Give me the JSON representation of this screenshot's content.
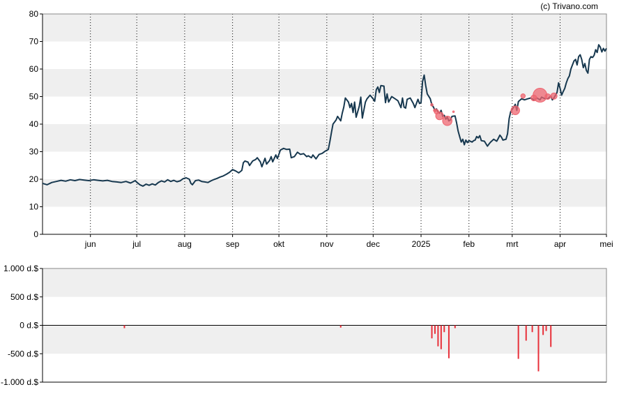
{
  "credit": "(c) Trivano.com",
  "colors": {
    "band": "#efefef",
    "price_line": "#17384f",
    "marker": "#ee6570",
    "bar": "#e8303a",
    "axis": "#000000"
  },
  "chart_data": [
    {
      "type": "line",
      "ylim": [
        0,
        80
      ],
      "yticks": [
        "0",
        "10",
        "20",
        "30",
        "40",
        "50",
        "60",
        "70",
        "80"
      ],
      "xlim": [
        0,
        365
      ],
      "xticks": [
        {
          "label": "jun",
          "x": 31
        },
        {
          "label": "jul",
          "x": 61
        },
        {
          "label": "aug",
          "x": 92
        },
        {
          "label": "sep",
          "x": 123
        },
        {
          "label": "okt",
          "x": 153
        },
        {
          "label": "nov",
          "x": 184
        },
        {
          "label": "dec",
          "x": 214
        },
        {
          "label": "2025",
          "x": 245
        },
        {
          "label": "feb",
          "x": 276
        },
        {
          "label": "mrt",
          "x": 304
        },
        {
          "label": "apr",
          "x": 335
        },
        {
          "label": "mei",
          "x": 365
        }
      ],
      "series": [
        {
          "points": [
            [
              0,
              18.5
            ],
            [
              3,
              18.0
            ],
            [
              6,
              18.8
            ],
            [
              9,
              19.2
            ],
            [
              12,
              19.6
            ],
            [
              15,
              19.3
            ],
            [
              18,
              19.8
            ],
            [
              21,
              19.5
            ],
            [
              24,
              19.9
            ],
            [
              27,
              19.7
            ],
            [
              30,
              19.5
            ],
            [
              33,
              19.8
            ],
            [
              36,
              19.6
            ],
            [
              39,
              19.4
            ],
            [
              42,
              19.6
            ],
            [
              45,
              19.2
            ],
            [
              48,
              19.0
            ],
            [
              51,
              18.8
            ],
            [
              54,
              19.2
            ],
            [
              57,
              18.6
            ],
            [
              60,
              19.5
            ],
            [
              61,
              18.9
            ],
            [
              63,
              18.0
            ],
            [
              65,
              17.5
            ],
            [
              67,
              18.2
            ],
            [
              69,
              17.8
            ],
            [
              71,
              18.3
            ],
            [
              73,
              17.9
            ],
            [
              75,
              18.8
            ],
            [
              77,
              19.4
            ],
            [
              79,
              19.0
            ],
            [
              81,
              19.8
            ],
            [
              83,
              19.2
            ],
            [
              85,
              19.6
            ],
            [
              87,
              19.1
            ],
            [
              89,
              19.4
            ],
            [
              91,
              20.2
            ],
            [
              93,
              20.5
            ],
            [
              95,
              20.0
            ],
            [
              96,
              18.5
            ],
            [
              97,
              18.0
            ],
            [
              99,
              19.5
            ],
            [
              101,
              19.7
            ],
            [
              103,
              19.2
            ],
            [
              105,
              19.0
            ],
            [
              107,
              18.8
            ],
            [
              109,
              19.4
            ],
            [
              111,
              19.9
            ],
            [
              113,
              20.3
            ],
            [
              115,
              20.8
            ],
            [
              117,
              21.2
            ],
            [
              119,
              21.8
            ],
            [
              121,
              22.5
            ],
            [
              123,
              23.5
            ],
            [
              125,
              23.0
            ],
            [
              127,
              22.3
            ],
            [
              129,
              23.2
            ],
            [
              130,
              26.0
            ],
            [
              131,
              26.6
            ],
            [
              133,
              26.2
            ],
            [
              134,
              25.0
            ],
            [
              136,
              26.6
            ],
            [
              138,
              27.2
            ],
            [
              139,
              27.8
            ],
            [
              141,
              26.3
            ],
            [
              142,
              24.5
            ],
            [
              144,
              27.6
            ],
            [
              145,
              25.5
            ],
            [
              147,
              26.8
            ],
            [
              148,
              28.2
            ],
            [
              149,
              26.3
            ],
            [
              151,
              28.8
            ],
            [
              152,
              27.5
            ],
            [
              154,
              30.6
            ],
            [
              156,
              31.2
            ],
            [
              158,
              30.8
            ],
            [
              160,
              30.9
            ],
            [
              161,
              27.8
            ],
            [
              163,
              28.2
            ],
            [
              165,
              29.8
            ],
            [
              167,
              29.0
            ],
            [
              169,
              29.3
            ],
            [
              171,
              28.2
            ],
            [
              172,
              28.5
            ],
            [
              174,
              27.8
            ],
            [
              175,
              28.8
            ],
            [
              177,
              27.4
            ],
            [
              179,
              29.0
            ],
            [
              181,
              29.4
            ],
            [
              183,
              30.2
            ],
            [
              185,
              30.8
            ],
            [
              186,
              33.8
            ],
            [
              187,
              37.0
            ],
            [
              188,
              40.0
            ],
            [
              190,
              41.5
            ],
            [
              191,
              42.8
            ],
            [
              193,
              41.2
            ],
            [
              194,
              44.0
            ],
            [
              195,
              46.2
            ],
            [
              196,
              49.5
            ],
            [
              198,
              48.0
            ],
            [
              199,
              46.0
            ],
            [
              200,
              47.5
            ],
            [
              201,
              44.2
            ],
            [
              202,
              48.0
            ],
            [
              203,
              42.5
            ],
            [
              205,
              46.5
            ],
            [
              206,
              49.8
            ],
            [
              207,
              42.2
            ],
            [
              209,
              48.0
            ],
            [
              210,
              49.2
            ],
            [
              212,
              50.5
            ],
            [
              214,
              49.2
            ],
            [
              215,
              48.3
            ],
            [
              216,
              52.5
            ],
            [
              217,
              53.5
            ],
            [
              218,
              51.5
            ],
            [
              219,
              54.0
            ],
            [
              221,
              53.8
            ],
            [
              222,
              47.8
            ],
            [
              223,
              51.0
            ],
            [
              224,
              48.0
            ],
            [
              226,
              50.0
            ],
            [
              228,
              49.3
            ],
            [
              230,
              48.5
            ],
            [
              232,
              46.0
            ],
            [
              233,
              49.5
            ],
            [
              234,
              46.2
            ],
            [
              235,
              45.8
            ],
            [
              236,
              49.0
            ],
            [
              238,
              49.5
            ],
            [
              240,
              47.5
            ],
            [
              241,
              46.0
            ],
            [
              243,
              49.0
            ],
            [
              244,
              47.5
            ],
            [
              245,
              47.8
            ],
            [
              246,
              55.5
            ],
            [
              247,
              57.8
            ],
            [
              248,
              54.0
            ],
            [
              249,
              51.0
            ],
            [
              251,
              49.2
            ],
            [
              252,
              47.0
            ],
            [
              253,
              46.2
            ],
            [
              254,
              45.0
            ],
            [
              255,
              45.5
            ],
            [
              256,
              44.5
            ],
            [
              257,
              44.0
            ],
            [
              258,
              45.0
            ],
            [
              259,
              42.8
            ],
            [
              260,
              43.2
            ],
            [
              261,
              41.8
            ],
            [
              262,
              42.5
            ],
            [
              263,
              41.2
            ],
            [
              264,
              41.5
            ],
            [
              265,
              42.8
            ],
            [
              267,
              43.0
            ],
            [
              268,
              40.5
            ],
            [
              269,
              37.5
            ],
            [
              270,
              35.5
            ],
            [
              271,
              33.5
            ],
            [
              272,
              34.5
            ],
            [
              273,
              32.5
            ],
            [
              274,
              34.2
            ],
            [
              275,
              33.3
            ],
            [
              276,
              34.0
            ],
            [
              278,
              33.5
            ],
            [
              279,
              34.0
            ],
            [
              280,
              34.2
            ],
            [
              281,
              35.5
            ],
            [
              282,
              35.0
            ],
            [
              283,
              35.8
            ],
            [
              284,
              34.0
            ],
            [
              286,
              33.8
            ],
            [
              288,
              32.0
            ],
            [
              289,
              32.8
            ],
            [
              290,
              33.5
            ],
            [
              292,
              34.5
            ],
            [
              294,
              33.8
            ],
            [
              295,
              34.8
            ],
            [
              296,
              36.0
            ],
            [
              297,
              35.3
            ],
            [
              298,
              34.2
            ],
            [
              300,
              34.5
            ],
            [
              301,
              36.5
            ],
            [
              302,
              42.0
            ],
            [
              303,
              44.5
            ],
            [
              305,
              46.2
            ],
            [
              306,
              47.2
            ],
            [
              307,
              45.0
            ],
            [
              308,
              48.2
            ],
            [
              310,
              49.2
            ],
            [
              312,
              48.8
            ],
            [
              314,
              49.2
            ],
            [
              316,
              49.5
            ],
            [
              318,
              48.8
            ],
            [
              320,
              49.5
            ],
            [
              322,
              48.8
            ],
            [
              323,
              49.8
            ],
            [
              325,
              49.3
            ],
            [
              327,
              49.2
            ],
            [
              329,
              50.2
            ],
            [
              330,
              48.8
            ],
            [
              331,
              49.5
            ],
            [
              333,
              51.5
            ],
            [
              334,
              55.0
            ],
            [
              335,
              53.0
            ],
            [
              336,
              50.5
            ],
            [
              337,
              51.8
            ],
            [
              338,
              53.0
            ],
            [
              339,
              55.0
            ],
            [
              340,
              56.5
            ],
            [
              341,
              57.5
            ],
            [
              342,
              60.0
            ],
            [
              343,
              61.5
            ],
            [
              344,
              63.0
            ],
            [
              345,
              63.5
            ],
            [
              346,
              61.5
            ],
            [
              347,
              64.5
            ],
            [
              348,
              65.2
            ],
            [
              349,
              63.5
            ],
            [
              350,
              60.5
            ],
            [
              351,
              62.0
            ],
            [
              352,
              59.5
            ],
            [
              353,
              58.5
            ],
            [
              354,
              63.5
            ],
            [
              355,
              64.5
            ],
            [
              356,
              64.2
            ],
            [
              357,
              65.0
            ],
            [
              358,
              67.0
            ],
            [
              359,
              66.0
            ],
            [
              360,
              68.8
            ],
            [
              361,
              68.0
            ],
            [
              362,
              66.2
            ],
            [
              363,
              67.5
            ],
            [
              364,
              66.5
            ],
            [
              365,
              67.5
            ]
          ]
        }
      ],
      "markers": [
        {
          "x": 252,
          "y": 47.0,
          "size": 1.8
        },
        {
          "x": 254,
          "y": 45.0,
          "size": 2.2
        },
        {
          "x": 255,
          "y": 44.5,
          "size": 3.2
        },
        {
          "x": 257,
          "y": 43.0,
          "size": 5.6
        },
        {
          "x": 262,
          "y": 41.2,
          "size": 6.8
        },
        {
          "x": 266,
          "y": 44.5,
          "size": 1.2
        },
        {
          "x": 306,
          "y": 45.0,
          "size": 6.2
        },
        {
          "x": 311,
          "y": 50.2,
          "size": 3.2
        },
        {
          "x": 318,
          "y": 49.5,
          "size": 4.2
        },
        {
          "x": 322,
          "y": 50.5,
          "size": 10.0
        },
        {
          "x": 327,
          "y": 50.0,
          "size": 4.0
        },
        {
          "x": 331,
          "y": 50.2,
          "size": 4.5
        }
      ]
    },
    {
      "type": "bar",
      "ylim": [
        -1000,
        1000
      ],
      "yticks": [
        "1.000 d.$",
        "500 d.$",
        "0 d.$",
        "-500 d.$",
        "-1.000 d.$"
      ],
      "xlim": [
        0,
        365
      ],
      "bars": [
        {
          "x": 53,
          "value": -50
        },
        {
          "x": 193,
          "value": -40
        },
        {
          "x": 252,
          "value": -230
        },
        {
          "x": 254,
          "value": -150
        },
        {
          "x": 256,
          "value": -370
        },
        {
          "x": 258,
          "value": -420
        },
        {
          "x": 260,
          "value": -120
        },
        {
          "x": 263,
          "value": -580
        },
        {
          "x": 267,
          "value": -50
        },
        {
          "x": 308,
          "value": -590
        },
        {
          "x": 313,
          "value": -270
        },
        {
          "x": 317,
          "value": -120
        },
        {
          "x": 321,
          "value": -810
        },
        {
          "x": 324,
          "value": -170
        },
        {
          "x": 326,
          "value": -100
        },
        {
          "x": 329,
          "value": -380
        }
      ]
    }
  ]
}
